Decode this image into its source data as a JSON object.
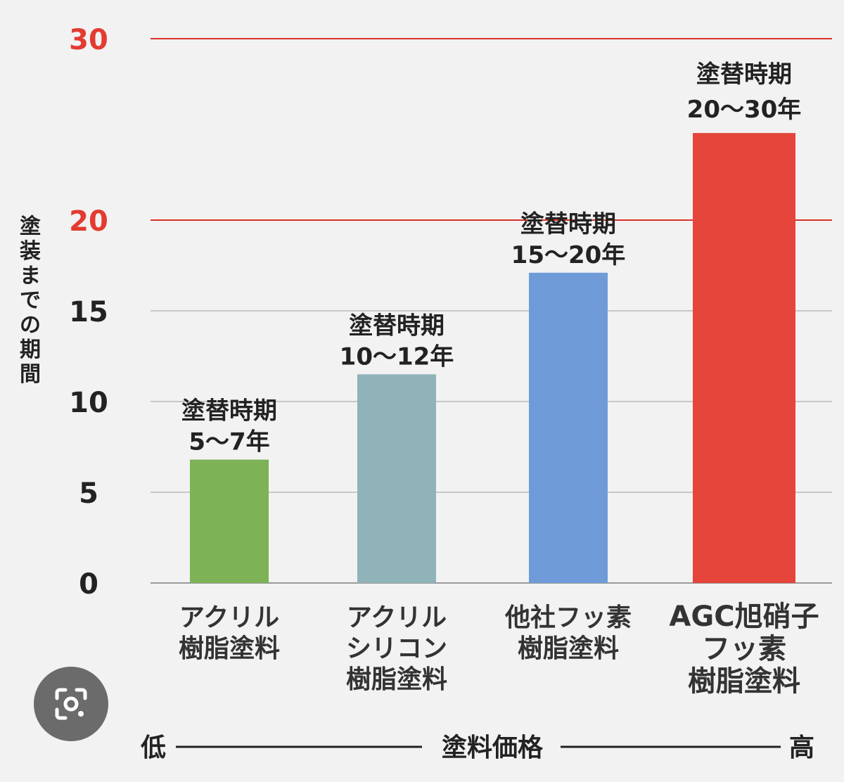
{
  "chart_data": {
    "type": "bar",
    "ylabel": "塗装までの期間",
    "ylim": [
      0,
      30
    ],
    "yticks": [
      {
        "value": 0,
        "label": "0",
        "color": "#222222"
      },
      {
        "value": 5,
        "label": "5",
        "color": "#222222"
      },
      {
        "value": 10,
        "label": "10",
        "color": "#222222"
      },
      {
        "value": 15,
        "label": "15",
        "color": "#222222"
      },
      {
        "value": 20,
        "label": "20",
        "color": "#e33b30"
      },
      {
        "value": 30,
        "label": "30",
        "color": "#e33b30"
      }
    ],
    "gridlines": [
      {
        "value": 5,
        "color": "#c8c8c8"
      },
      {
        "value": 10,
        "color": "#c8c8c8"
      },
      {
        "value": 15,
        "color": "#c8c8c8"
      },
      {
        "value": 20,
        "color": "#d93228"
      },
      {
        "value": 30,
        "color": "#d93228"
      }
    ],
    "categories": [
      [
        "アクリル",
        "樹脂塗料"
      ],
      [
        "アクリル",
        "シリコン",
        "樹脂塗料"
      ],
      [
        "他社フッ素",
        "樹脂塗料"
      ],
      [
        "AGC旭硝子",
        "フッ素",
        "樹脂塗料"
      ]
    ],
    "values": [
      6.8,
      11.5,
      17.1,
      24.8
    ],
    "bar_colors": [
      "#7db356",
      "#8fb3b8",
      "#6f9cd8",
      "#e5453a"
    ],
    "category_colors": [
      "#333333",
      "#333333",
      "#333333",
      "#e33b30"
    ],
    "annotations": [
      {
        "line1": "塗替時期",
        "line2": "5〜7年",
        "color": "#222222"
      },
      {
        "line1": "塗替時期",
        "line2": "10〜12年",
        "color": "#222222"
      },
      {
        "line1": "塗替時期",
        "line2": "15〜20年",
        "color": "#222222"
      },
      {
        "line1": "塗替時期",
        "line2": "20〜30年",
        "color": "#e33b30"
      }
    ],
    "x_axis_caption": {
      "low": "低",
      "center": "塗料価格",
      "high": "高"
    }
  },
  "icons": {
    "lens_button": "google-lens-camera-icon"
  }
}
